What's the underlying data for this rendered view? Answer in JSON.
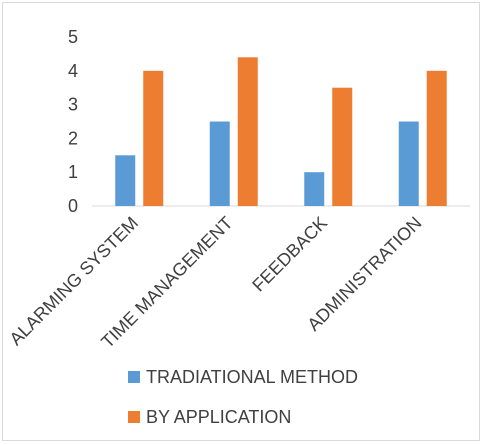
{
  "chart_data": {
    "type": "bar",
    "categories": [
      "ALARMING SYSTEM",
      "TIME MANAGEMENT",
      "FEEDBACK",
      "ADMINISTRATION"
    ],
    "series": [
      {
        "name": "TRADIATIONAL METHOD",
        "values": [
          1.5,
          2.5,
          1.0,
          2.5
        ],
        "color": "#5b9bd5"
      },
      {
        "name": "BY APPLICATION",
        "values": [
          4.0,
          4.4,
          3.5,
          4.0
        ],
        "color": "#ed7d31"
      }
    ],
    "yticks": [
      "0",
      "1",
      "2",
      "3",
      "4",
      "5"
    ],
    "ylim": [
      0,
      5
    ],
    "grid": false,
    "legend_position": "bottom"
  }
}
